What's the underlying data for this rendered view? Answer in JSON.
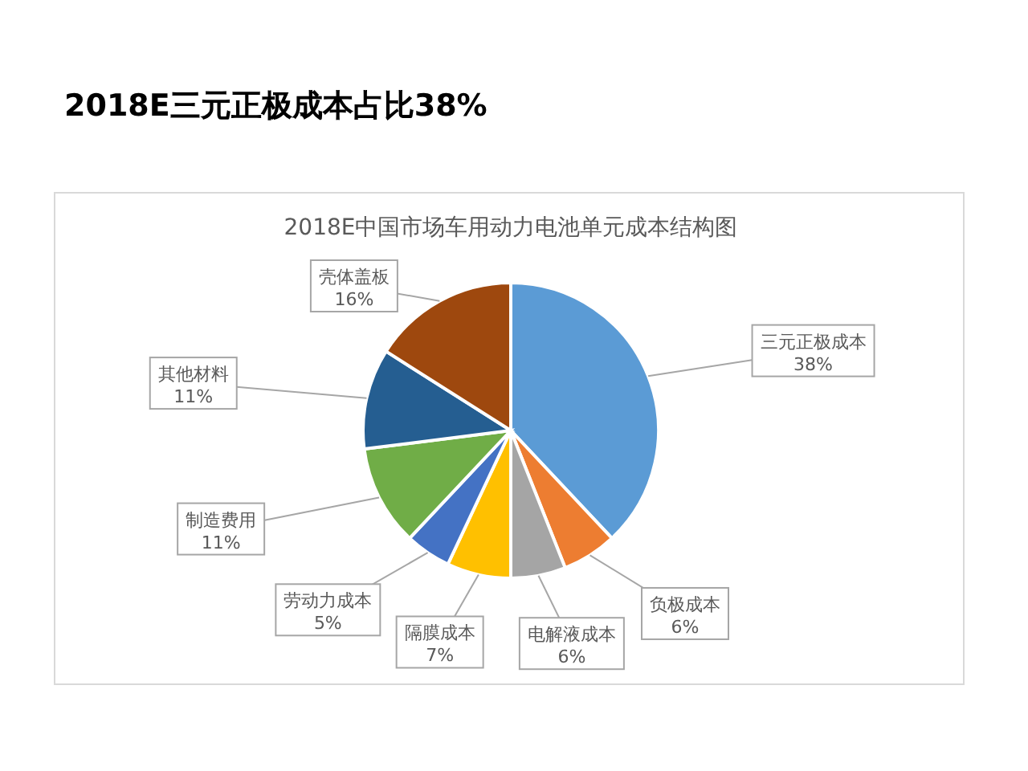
{
  "chart_data": {
    "type": "pie",
    "title": "2018E三元正极成本占比38%",
    "subtitle": "2018E中国市场车用动力电池单元成本结构图",
    "categories": [
      "三元正极成本",
      "负极成本",
      "电解液成本",
      "隔膜成本",
      "劳动力成本",
      "制造费用",
      "其他材料",
      "壳体盖板"
    ],
    "values": [
      38,
      6,
      6,
      7,
      5,
      11,
      11,
      16
    ],
    "colors": [
      "#5b9bd5",
      "#ed7d31",
      "#a5a5a5",
      "#ffc000",
      "#4472c4",
      "#70ad47",
      "#255e91",
      "#9e480e"
    ],
    "value_labels": [
      "38%",
      "6%",
      "6%",
      "7%",
      "5%",
      "11%",
      "11%",
      "16%"
    ]
  }
}
